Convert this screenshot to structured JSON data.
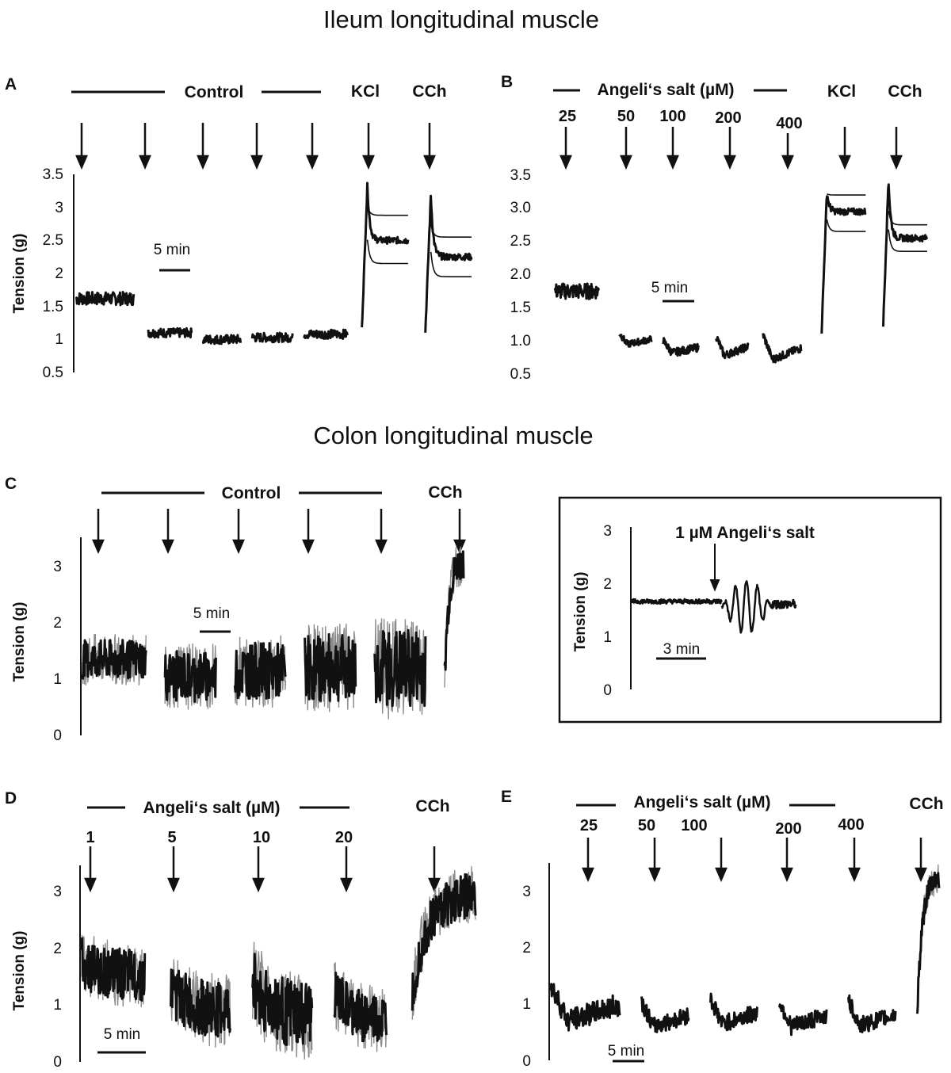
{
  "titles": {
    "ileum": "Ileum longitudinal muscle",
    "colon": "Colon longitudinal muscle"
  },
  "chart_data": [
    {
      "panel": "A",
      "type": "line",
      "group_label": "Control",
      "arrow_labels": [
        "",
        "",
        "",
        "",
        "",
        "KCl",
        "CCh"
      ],
      "ylabel": "Tension (g)",
      "ylim": [
        0.5,
        3.5
      ],
      "yticks": [
        "0.5",
        "1",
        "1.5",
        "2",
        "2.5",
        "3",
        "3.5"
      ],
      "scale_bar": "5 min",
      "segments": [
        {
          "kind": "flat",
          "level": 1.62,
          "spread": 0.1,
          "start": 0.0,
          "end": 1.0
        },
        {
          "kind": "flat",
          "level": 1.1,
          "spread": 0.07,
          "start": 1.25,
          "end": 2.0
        },
        {
          "kind": "flat",
          "level": 1.0,
          "spread": 0.07,
          "start": 2.2,
          "end": 2.85
        },
        {
          "kind": "flat",
          "level": 1.03,
          "spread": 0.07,
          "start": 3.05,
          "end": 3.75
        },
        {
          "kind": "flat",
          "level": 1.08,
          "spread": 0.07,
          "start": 3.95,
          "end": 4.7
        },
        {
          "kind": "contract",
          "base": 1.15,
          "peak": 3.35,
          "plateau": 2.5,
          "upper": 2.88,
          "lower": 2.15,
          "start": 4.95,
          "end": 5.75
        },
        {
          "kind": "contract",
          "base": 1.12,
          "peak": 3.2,
          "plateau": 2.25,
          "upper": 2.55,
          "lower": 1.95,
          "start": 6.05,
          "end": 6.85
        }
      ]
    },
    {
      "panel": "B",
      "type": "line",
      "group_label": "Angeli‘s salt (µM)",
      "arrow_labels": [
        "25",
        "50",
        "100",
        "200",
        "400",
        "KCl",
        "CCh"
      ],
      "ylabel": "Tension (g)",
      "ylim": [
        0.5,
        3.5
      ],
      "yticks": [
        "0.5",
        "1.0",
        "1.5",
        "2.0",
        "2.5",
        "3.0",
        "3.5"
      ],
      "scale_bar": "5 min",
      "segments": [
        {
          "kind": "flat",
          "level": 1.75,
          "spread": 0.12,
          "start": 0.0,
          "end": 0.75
        },
        {
          "kind": "dip",
          "base": 1.12,
          "low": 0.95,
          "spread": 0.05,
          "start": 1.1,
          "end": 1.65
        },
        {
          "kind": "dip",
          "base": 1.0,
          "low": 0.82,
          "spread": 0.06,
          "start": 1.85,
          "end": 2.45
        },
        {
          "kind": "dip",
          "base": 1.08,
          "low": 0.78,
          "spread": 0.06,
          "start": 2.75,
          "end": 3.3
        },
        {
          "kind": "dip",
          "base": 1.1,
          "low": 0.72,
          "spread": 0.06,
          "start": 3.55,
          "end": 4.2
        },
        {
          "kind": "contract",
          "base": 1.15,
          "peak": 3.25,
          "plateau": 2.95,
          "upper": 3.2,
          "lower": 2.65,
          "start": 4.55,
          "end": 5.3
        },
        {
          "kind": "contract",
          "base": 1.25,
          "peak": 3.45,
          "plateau": 2.55,
          "upper": 2.75,
          "lower": 2.35,
          "start": 5.6,
          "end": 6.35
        }
      ]
    },
    {
      "panel": "C",
      "type": "line",
      "group_label": "Control",
      "arrow_labels": [
        "",
        "",
        "",
        "",
        "",
        "CCh"
      ],
      "ylabel": "Tension (g)",
      "ylim": [
        0,
        3
      ],
      "yticks": [
        "0",
        "1",
        "2",
        "3"
      ],
      "scale_bar": "5 min",
      "segments": [
        {
          "kind": "noisy",
          "level": 1.35,
          "spread": 0.35,
          "start": 0.0,
          "end": 1.0
        },
        {
          "kind": "noisy",
          "level": 1.05,
          "spread": 0.45,
          "start": 1.3,
          "end": 2.1
        },
        {
          "kind": "noisy",
          "level": 1.15,
          "spread": 0.5,
          "start": 2.4,
          "end": 3.2
        },
        {
          "kind": "noisy",
          "level": 1.2,
          "spread": 0.6,
          "start": 3.5,
          "end": 4.3
        },
        {
          "kind": "noisy",
          "level": 1.2,
          "spread": 0.7,
          "start": 4.6,
          "end": 5.4
        },
        {
          "kind": "rise",
          "base": 1.0,
          "top": 3.1,
          "spread": 0.3,
          "start": 5.7,
          "end": 6.0
        }
      ]
    },
    {
      "panel": "C-inset",
      "type": "line",
      "annotation": "1 µM Angeli‘s salt",
      "ylabel": "Tension (g)",
      "ylim": [
        0,
        3
      ],
      "yticks": [
        "0",
        "1",
        "2",
        "3"
      ],
      "scale_bar": "3 min",
      "segments": [
        {
          "kind": "flat",
          "level": 1.65,
          "spread": 0.04,
          "start": 0.0,
          "end": 0.55
        },
        {
          "kind": "oscillate",
          "level": 1.55,
          "amp": 0.5,
          "start": 0.55,
          "end": 0.85
        },
        {
          "kind": "flat",
          "level": 1.6,
          "spread": 0.08,
          "start": 0.85,
          "end": 1.0
        }
      ]
    },
    {
      "panel": "D",
      "type": "line",
      "group_label": "Angeli‘s salt (µM)",
      "arrow_labels": [
        "1",
        "5",
        "10",
        "20",
        "CCh"
      ],
      "ylabel": "Tension (g)",
      "ylim": [
        0,
        3
      ],
      "yticks": [
        "0",
        "1",
        "2",
        "3"
      ],
      "scale_bar": "5 min",
      "segments": [
        {
          "kind": "decay",
          "base": 1.75,
          "low": 1.5,
          "spread": 0.45,
          "start": 0.0,
          "end": 0.85
        },
        {
          "kind": "decay",
          "base": 1.3,
          "low": 0.85,
          "spread": 0.5,
          "start": 1.2,
          "end": 2.0
        },
        {
          "kind": "decay",
          "base": 1.4,
          "low": 0.75,
          "spread": 0.6,
          "start": 2.3,
          "end": 3.1
        },
        {
          "kind": "decay",
          "base": 1.2,
          "low": 0.7,
          "spread": 0.45,
          "start": 3.4,
          "end": 4.1
        },
        {
          "kind": "rise",
          "base": 1.2,
          "top": 2.95,
          "spread": 0.4,
          "start": 4.45,
          "end": 5.3
        }
      ]
    },
    {
      "panel": "E",
      "type": "line",
      "group_label": "Angeli‘s salt (µM)",
      "arrow_labels": [
        "25",
        "50",
        "100",
        "200",
        "400",
        "CCh"
      ],
      "ylabel": "",
      "ylim": [
        0,
        3
      ],
      "yticks": [
        "0",
        "1",
        "2",
        "3"
      ],
      "scale_bar": "5 min",
      "segments": [
        {
          "kind": "dip",
          "base": 1.35,
          "low": 0.7,
          "spread": 0.2,
          "start": 0.0,
          "end": 0.95
        },
        {
          "kind": "dip",
          "base": 1.05,
          "low": 0.6,
          "spread": 0.15,
          "start": 1.25,
          "end": 1.9
        },
        {
          "kind": "dip",
          "base": 1.1,
          "low": 0.65,
          "spread": 0.15,
          "start": 2.2,
          "end": 2.85
        },
        {
          "kind": "dip",
          "base": 1.05,
          "low": 0.6,
          "spread": 0.15,
          "start": 3.15,
          "end": 3.8
        },
        {
          "kind": "dip",
          "base": 1.05,
          "low": 0.62,
          "spread": 0.15,
          "start": 4.1,
          "end": 4.75
        },
        {
          "kind": "rise",
          "base": 0.85,
          "top": 3.25,
          "spread": 0.2,
          "start": 5.05,
          "end": 5.35
        }
      ]
    }
  ]
}
